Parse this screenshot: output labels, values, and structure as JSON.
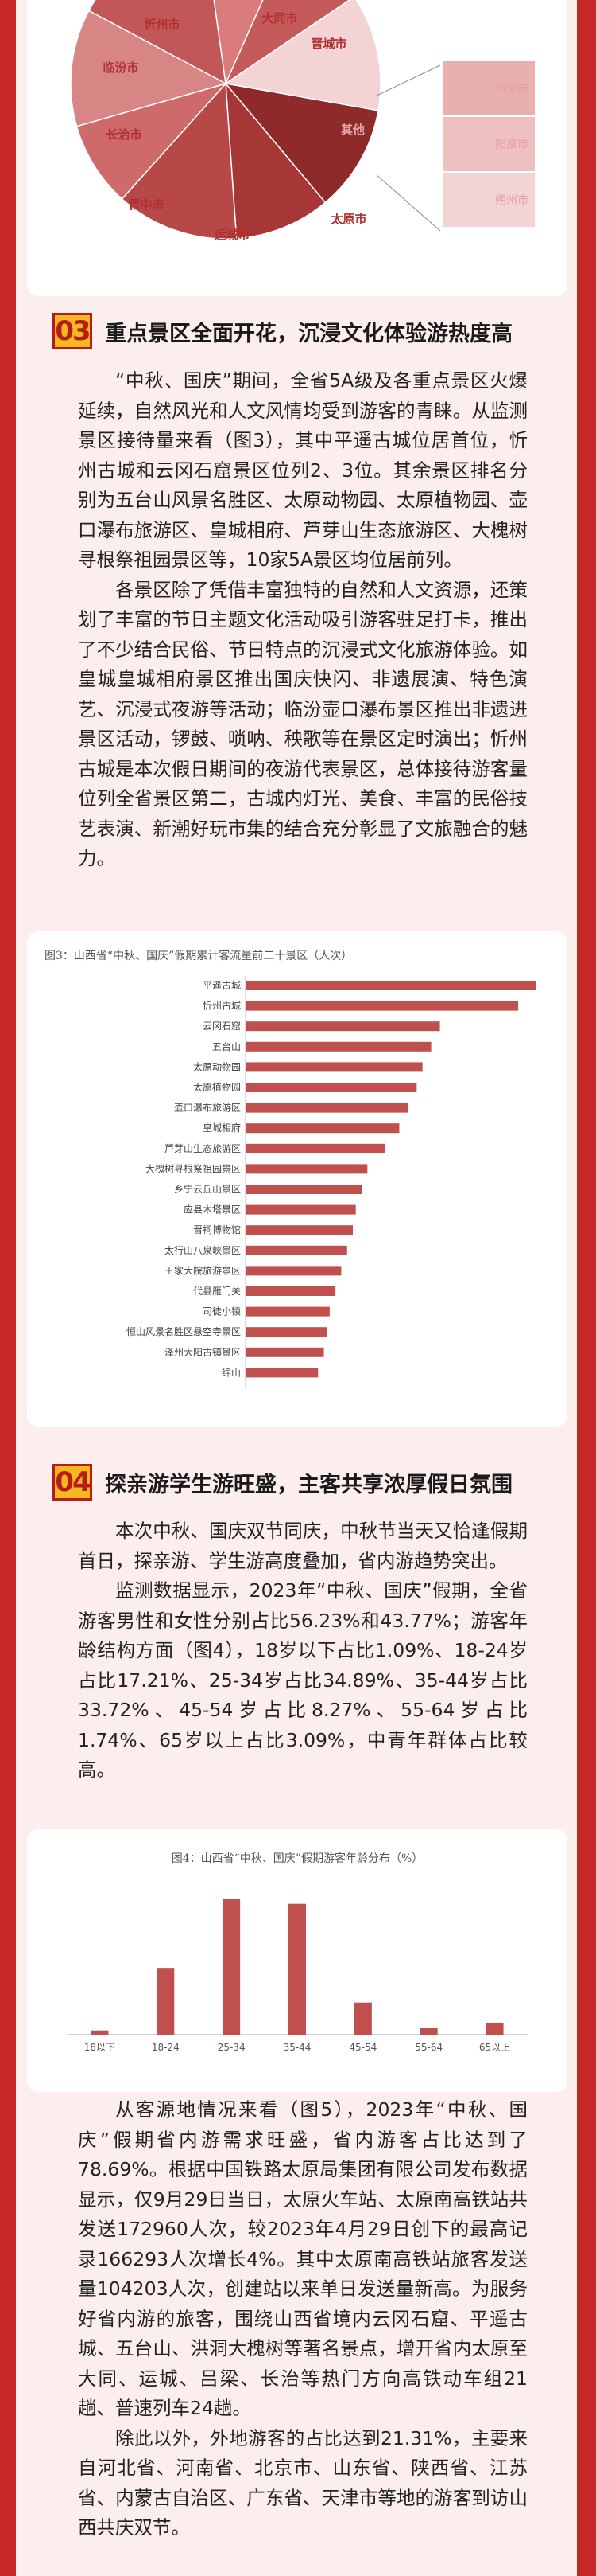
{
  "pie_chart": {
    "labels": [
      "忻州市",
      "大同市",
      "晋城市",
      "临汾市",
      "长治市",
      "晋中市",
      "运城市",
      "太原市",
      "其他"
    ],
    "other_breakdown": [
      "吕梁市",
      "阳泉市",
      "朔州市"
    ],
    "colors": {
      "primary": "#b03a3a",
      "light": "#f4cccc"
    }
  },
  "section3": {
    "number": "03",
    "title": "重点景区全面开花，沉浸文化体验游热度高",
    "paragraphs": [
      "“中秋、国庆”期间，全省5A级及各重点景区火爆延续，自然风光和人文风情均受到游客的青睐。从监测景区接待量来看（图3），其中平遥古城位居首位，忻州古城和云冈石窟景区位列2、3位。其余景区排名分别为五台山风景名胜区、太原动物园、太原植物园、壶口瀑布旅游区、皇城相府、芦芽山生态旅游区、大槐树寻根祭祖园景区等，10家5A景区均位居前列。",
      "各景区除了凭借丰富独特的自然和人文资源，还策划了丰富的节日主题文化活动吸引游客驻足打卡，推出了不少结合民俗、节日特点的沉浸式文化旅游体验。如皇城皇城相府景区推出国庆快闪、非遗展演、特色演艺、沉浸式夜游等活动；临汾壶口瀑布景区推出非遗进景区活动，锣鼓、唢呐、秧歌等在景区定时演出；忻州古城是本次假日期间的夜游代表景区，总体接待游客量位列全省景区第二，古城内灯光、美食、丰富的民俗技艺表演、新潮好玩市集的结合充分彰显了文旅融合的魅力。"
    ]
  },
  "fig3": {
    "title": "图3：山西省“中秋、国庆”假期累计客流量前二十景区（人次）",
    "chart_data": {
      "type": "bar",
      "orientation": "horizontal",
      "categories": [
        "平遥古城",
        "忻州古城",
        "云冈石窟",
        "五台山",
        "太原动物园",
        "太原植物园",
        "壶口瀑布旅游区",
        "皇城相府",
        "芦芽山生态旅游区",
        "大槐树寻根祭祖园景区",
        "乡宁云丘山景区",
        "应县木塔景区",
        "晋祠博物馆",
        "太行山八泉峡景区",
        "王家大院旅游景区",
        "代县雁门关",
        "司徒小镇",
        "恒山风景名胜区悬空寺景区",
        "泽州大阳古镇景区",
        "绵山"
      ],
      "values": [
        100,
        94,
        67,
        64,
        61,
        59,
        56,
        53,
        48,
        42,
        40,
        38,
        37,
        35,
        33,
        31,
        29,
        28,
        27,
        25
      ]
    }
  },
  "section4": {
    "number": "04",
    "title": "探亲游学生游旺盛，主客共享浓厚假日氛围",
    "paragraphs": [
      "本次中秋、国庆双节同庆，中秋节当天又恰逢假期首日，探亲游、学生游高度叠加，省内游趋势突出。",
      "监测数据显示，2023年“中秋、国庆”假期，全省游客男性和女性分别占比56.23%和43.77%；游客年龄结构方面（图4），18岁以下占比1.09%、18-24岁占比17.21%、25-34岁占比34.89%、35-44岁占比33.72%、45-54岁占比8.27%、55-64岁占比1.74%、65岁以上占比3.09%，中青年群体占比较高。"
    ]
  },
  "fig4": {
    "title": "图4：山西省“中秋、国庆”假期游客年龄分布（%）",
    "chart_data": {
      "type": "bar",
      "categories": [
        "18以下",
        "18-24",
        "25-34",
        "35-44",
        "45-54",
        "55-64",
        "65以上"
      ],
      "values": [
        1.09,
        17.21,
        34.89,
        33.72,
        8.27,
        1.74,
        3.09
      ]
    }
  },
  "section5": {
    "paragraphs": [
      "从客源地情况来看（图5），2023年“中秋、国庆”假期省内游需求旺盛，省内游客占比达到了78.69%。根据中国铁路太原局集团有限公司发布数据显示，仅9月29日当日，太原火车站、太原南高铁站共发送172960人次，较2023年4月29日创下的最高记录166293人次增长4%。其中太原南高铁站旅客发送量104203人次，创建站以来单日发送量新高。为服务好省内游的旅客，围绕山西省境内云冈石窟、平遥古城、五台山、洪洞大槐树等著名景点，增开省内太原至大同、运城、吕梁、长治等热门方向高铁动车组21趟、普速列车24趟。",
      "除此以外，外地游客的占比达到21.31%，主要来自河北省、河南省、北京市、山东省、陕西省、江苏省、内蒙古自治区、广东省、天津市等地的游客到访山西共庆双节。"
    ]
  }
}
